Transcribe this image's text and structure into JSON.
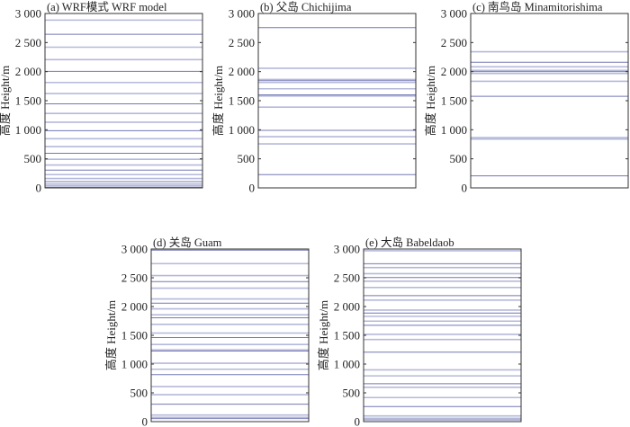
{
  "chart_data": [
    {
      "type": "line",
      "title": "(a) WRF模式 WRF model",
      "ylabel": "高度 Height/m",
      "ylim": [
        0,
        3000
      ],
      "yticks": [
        0,
        500,
        1000,
        1500,
        2000,
        2500,
        3000
      ],
      "ytick_labels": [
        "0",
        "500",
        "1 000",
        "1 500",
        "2 000",
        "2 500",
        "3 000"
      ],
      "levels": [
        10,
        36,
        67,
        109,
        161,
        228,
        306,
        394,
        492,
        596,
        710,
        845,
        984,
        1130,
        1280,
        1446,
        1622,
        1813,
        2005,
        2207,
        2420,
        2642,
        2886
      ]
    },
    {
      "type": "line",
      "title": "(b) 父岛 Chichijima",
      "ylabel": "高度 Height/m",
      "ylim": [
        0,
        3000
      ],
      "yticks": [
        0,
        500,
        1000,
        1500,
        2000,
        2500,
        3000
      ],
      "ytick_labels": [
        "0",
        "500",
        "1 000",
        "1 500",
        "2 000",
        "2 500",
        "3 000"
      ],
      "levels": [
        228,
        756,
        881,
        990,
        1389,
        1580,
        1601,
        1705,
        1813,
        1845,
        1865,
        2057,
        2756
      ]
    },
    {
      "type": "line",
      "title": "(c) 南鸟岛 Minamitorishima",
      "ylabel": "高度 Height/m",
      "ylim": [
        0,
        3000
      ],
      "yticks": [
        0,
        500,
        1000,
        1500,
        2000,
        2500,
        3000
      ],
      "ytick_labels": [
        "0",
        "500",
        "1 000",
        "1 500",
        "2 000",
        "2 500",
        "3 000"
      ],
      "levels": [
        207,
        839,
        865,
        1575,
        1834,
        1969,
        2000,
        2021,
        2083,
        2161,
        2342
      ]
    },
    {
      "type": "line",
      "title": "(d) 关岛 Guam",
      "ylabel": "高度 Height/m",
      "ylim": [
        0,
        3000
      ],
      "yticks": [
        0,
        500,
        1000,
        1500,
        2000,
        2500,
        3000
      ],
      "ytick_labels": [
        "0",
        "500",
        "1 000",
        "1 500",
        "2 000",
        "2 500",
        "3 000"
      ],
      "levels": [
        52,
        73,
        114,
        302,
        468,
        608,
        816,
        910,
        1014,
        1227,
        1248,
        1341,
        1461,
        1539,
        1690,
        1804,
        1856,
        1960,
        2059,
        2132,
        2319,
        2434,
        2538,
        2746,
        2980
      ]
    },
    {
      "type": "line",
      "title": "(e) 大岛 Babeldaob",
      "ylabel": "高度 Height/m",
      "ylim": [
        0,
        3000
      ],
      "yticks": [
        0,
        500,
        1000,
        1500,
        2000,
        2500,
        3000
      ],
      "ytick_labels": [
        "0",
        "500",
        "1 000",
        "1 500",
        "2 000",
        "2 500",
        "3 000"
      ],
      "levels": [
        31,
        58,
        99,
        261,
        418,
        596,
        659,
        795,
        899,
        1208,
        1427,
        1516,
        1673,
        1746,
        1830,
        1887,
        1939,
        2112,
        2190,
        2331,
        2441,
        2503,
        2571,
        2676,
        2744,
        2969
      ]
    }
  ],
  "colors": {
    "line_light": "#aeb2d6",
    "line_dark": "#5c61a8",
    "axis": "#333333"
  }
}
